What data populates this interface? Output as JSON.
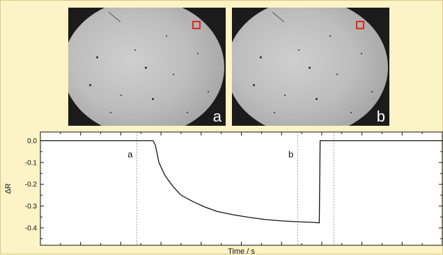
{
  "micrographs": [
    {
      "label": "a"
    },
    {
      "label": "b"
    }
  ],
  "chart_data": {
    "type": "line",
    "title": "",
    "xlabel": "Time / s",
    "ylabel": "ΔR",
    "xlim": [
      0,
      100
    ],
    "ylim": [
      -0.48,
      0.04
    ],
    "yticks": [
      0.0,
      -0.1,
      -0.2,
      -0.3,
      -0.4
    ],
    "ytick_labels": [
      "0.0",
      "-0.1",
      "-0.2",
      "-0.3",
      "-0.4"
    ],
    "x_tick_labels_shown": false,
    "grid": false,
    "markers": [
      {
        "label": "a",
        "x": 24
      },
      {
        "label": "b",
        "x": 64
      },
      {
        "label": "",
        "x": 73
      }
    ],
    "series": [
      {
        "color": "#111111",
        "points": [
          [
            0,
            0.0
          ],
          [
            28,
            0.0
          ],
          [
            28.6,
            -0.02
          ],
          [
            29.5,
            -0.1
          ],
          [
            31,
            -0.16
          ],
          [
            33,
            -0.21
          ],
          [
            35,
            -0.25
          ],
          [
            38,
            -0.28
          ],
          [
            41,
            -0.305
          ],
          [
            44,
            -0.325
          ],
          [
            48,
            -0.34
          ],
          [
            52,
            -0.352
          ],
          [
            56,
            -0.362
          ],
          [
            60,
            -0.368
          ],
          [
            64,
            -0.372
          ],
          [
            68,
            -0.375
          ],
          [
            69.4,
            -0.377
          ],
          [
            69.6,
            0.0
          ],
          [
            100,
            0.0
          ]
        ]
      }
    ]
  }
}
